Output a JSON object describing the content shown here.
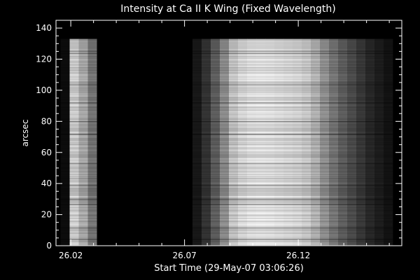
{
  "chart_data": {
    "type": "heatmap",
    "title": "Intensity at Ca II K Wing (Fixed Wavelength)",
    "xlabel": "Start Time (29-May-07 03:06:26)",
    "ylabel": "arcsec",
    "xlim": [
      26.0135,
      26.1655
    ],
    "ylim": [
      0,
      145
    ],
    "x_ticks": [
      26.02,
      26.07,
      26.12
    ],
    "x_tick_labels": [
      "26.02",
      "26.07",
      "26.12"
    ],
    "y_ticks": [
      0,
      20,
      40,
      60,
      80,
      100,
      120,
      140
    ],
    "y_tick_labels": [
      "0",
      "20",
      "40",
      "60",
      "80",
      "100",
      "120",
      "140"
    ],
    "data_y_range": [
      0,
      133
    ],
    "colormap": "grayscale",
    "exposures": [
      {
        "x0": 26.0155,
        "x1": 26.0195,
        "intensity": 0.05
      },
      {
        "x0": 26.0195,
        "x1": 26.0235,
        "intensity": 0.88
      },
      {
        "x0": 26.0235,
        "x1": 26.0275,
        "intensity": 0.72
      },
      {
        "x0": 26.0275,
        "x1": 26.0315,
        "intensity": 0.5
      },
      {
        "x0": 26.0315,
        "x1": 26.0735,
        "intensity": 0.0
      },
      {
        "x0": 26.0735,
        "x1": 26.0775,
        "intensity": 0.1
      },
      {
        "x0": 26.0775,
        "x1": 26.0815,
        "intensity": 0.22
      },
      {
        "x0": 26.0815,
        "x1": 26.0855,
        "intensity": 0.4
      },
      {
        "x0": 26.0855,
        "x1": 26.0895,
        "intensity": 0.6
      },
      {
        "x0": 26.0895,
        "x1": 26.0935,
        "intensity": 0.84
      },
      {
        "x0": 26.0935,
        "x1": 26.0975,
        "intensity": 0.92
      },
      {
        "x0": 26.0975,
        "x1": 26.1015,
        "intensity": 0.96
      },
      {
        "x0": 26.1015,
        "x1": 26.1055,
        "intensity": 0.97
      },
      {
        "x0": 26.1055,
        "x1": 26.1095,
        "intensity": 0.96
      },
      {
        "x0": 26.1095,
        "x1": 26.1135,
        "intensity": 0.94
      },
      {
        "x0": 26.1135,
        "x1": 26.1175,
        "intensity": 0.92
      },
      {
        "x0": 26.1175,
        "x1": 26.1215,
        "intensity": 0.9
      },
      {
        "x0": 26.1215,
        "x1": 26.1255,
        "intensity": 0.86
      },
      {
        "x0": 26.1255,
        "x1": 26.1295,
        "intensity": 0.76
      },
      {
        "x0": 26.1295,
        "x1": 26.1335,
        "intensity": 0.62
      },
      {
        "x0": 26.1335,
        "x1": 26.1375,
        "intensity": 0.5
      },
      {
        "x0": 26.1375,
        "x1": 26.1415,
        "intensity": 0.4
      },
      {
        "x0": 26.1415,
        "x1": 26.1455,
        "intensity": 0.32
      },
      {
        "x0": 26.1455,
        "x1": 26.1495,
        "intensity": 0.24
      },
      {
        "x0": 26.1495,
        "x1": 26.1535,
        "intensity": 0.17
      },
      {
        "x0": 26.1535,
        "x1": 26.1575,
        "intensity": 0.12
      },
      {
        "x0": 26.1575,
        "x1": 26.1615,
        "intensity": 0.08
      }
    ],
    "colors": {
      "background": "#000000",
      "axes": "#ffffff",
      "text": "#ffffff"
    }
  }
}
